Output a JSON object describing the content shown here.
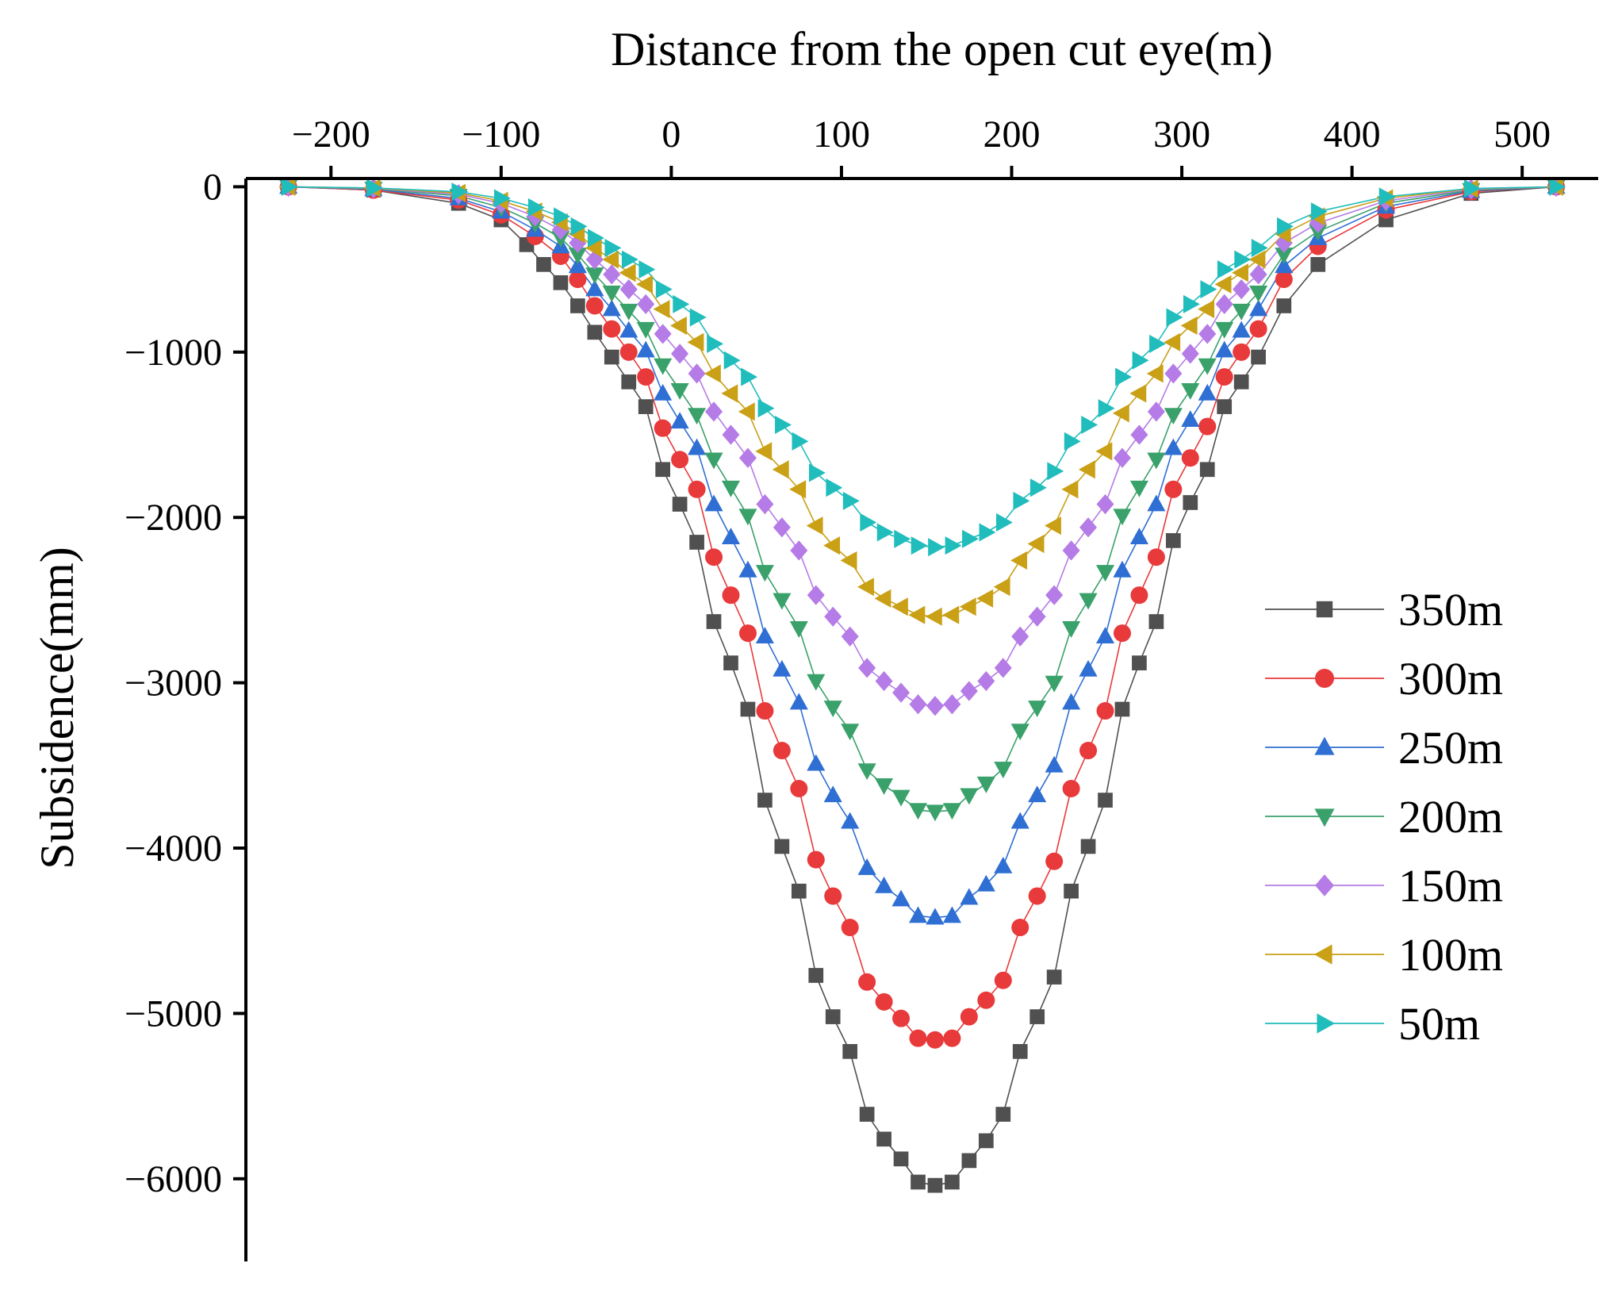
{
  "chart_data": {
    "type": "scatter",
    "title": "",
    "xlabel": "Distance from the open cut eye(m)",
    "ylabel": "Subsidence(mm)",
    "xlim": [
      -250,
      540
    ],
    "ylim": [
      -6500,
      50
    ],
    "x_ticks": [
      -200,
      -100,
      0,
      100,
      200,
      300,
      400,
      500
    ],
    "x_tick_labels": [
      "−200",
      "−100",
      "0",
      "100",
      "200",
      "300",
      "400",
      "500"
    ],
    "y_ticks": [
      0,
      -1000,
      -2000,
      -3000,
      -4000,
      -5000,
      -6000
    ],
    "y_tick_labels": [
      "0",
      "−1000",
      "−2000",
      "−3000",
      "−4000",
      "−5000",
      "−6000"
    ],
    "x_axis_position": "top",
    "legend_position": "right",
    "grid": false,
    "series": [
      {
        "name": "350m",
        "marker": "square",
        "color": "#505050",
        "line_color": "#505050",
        "x": [
          -225,
          -175,
          -125,
          -100,
          -85,
          -75,
          -65,
          -55,
          -45,
          -35,
          -25,
          -15,
          -5,
          5,
          15,
          25,
          35,
          45,
          55,
          65,
          75,
          85,
          95,
          105,
          115,
          125,
          135,
          145,
          155,
          165,
          175,
          185,
          195,
          205,
          215,
          225,
          235,
          245,
          255,
          265,
          275,
          285,
          295,
          305,
          315,
          325,
          335,
          345,
          360,
          380,
          420,
          470,
          520
        ],
        "y": [
          0,
          -20,
          -100,
          -200,
          -350,
          -470,
          -580,
          -720,
          -880,
          -1030,
          -1180,
          -1330,
          -1710,
          -1920,
          -2150,
          -2630,
          -2880,
          -3160,
          -3710,
          -3990,
          -4260,
          -4770,
          -5020,
          -5230,
          -5610,
          -5760,
          -5880,
          -6020,
          -6040,
          -6020,
          -5890,
          -5770,
          -5610,
          -5230,
          -5020,
          -4780,
          -4260,
          -3990,
          -3710,
          -3160,
          -2880,
          -2630,
          -2140,
          -1910,
          -1710,
          -1330,
          -1180,
          -1030,
          -720,
          -470,
          -200,
          -40,
          0
        ]
      },
      {
        "name": "300m",
        "marker": "circle",
        "color": "#e8393b",
        "line_color": "#e8393b",
        "x": [
          -225,
          -175,
          -125,
          -100,
          -80,
          -65,
          -55,
          -45,
          -35,
          -25,
          -15,
          -5,
          5,
          15,
          25,
          35,
          45,
          55,
          65,
          75,
          85,
          95,
          105,
          115,
          125,
          135,
          145,
          155,
          165,
          175,
          185,
          195,
          205,
          215,
          225,
          235,
          245,
          255,
          265,
          275,
          285,
          295,
          305,
          315,
          325,
          335,
          345,
          360,
          380,
          420,
          470,
          520
        ],
        "y": [
          0,
          -20,
          -80,
          -170,
          -300,
          -420,
          -560,
          -720,
          -860,
          -1000,
          -1150,
          -1460,
          -1650,
          -1830,
          -2240,
          -2470,
          -2700,
          -3170,
          -3410,
          -3640,
          -4070,
          -4290,
          -4480,
          -4810,
          -4930,
          -5030,
          -5150,
          -5160,
          -5150,
          -5020,
          -4920,
          -4800,
          -4480,
          -4290,
          -4080,
          -3640,
          -3410,
          -3170,
          -2700,
          -2470,
          -2240,
          -1830,
          -1640,
          -1450,
          -1150,
          -1000,
          -860,
          -560,
          -360,
          -140,
          -30,
          0
        ]
      },
      {
        "name": "250m",
        "marker": "triangle-up",
        "color": "#2f6fd3",
        "line_color": "#2f6fd3",
        "x": [
          -225,
          -175,
          -125,
          -100,
          -80,
          -65,
          -55,
          -45,
          -35,
          -25,
          -15,
          -5,
          5,
          15,
          25,
          35,
          45,
          55,
          65,
          75,
          85,
          95,
          105,
          115,
          125,
          135,
          145,
          155,
          165,
          175,
          185,
          195,
          205,
          215,
          225,
          235,
          245,
          255,
          265,
          275,
          285,
          295,
          305,
          315,
          325,
          335,
          345,
          360,
          380,
          420,
          470,
          520
        ],
        "y": [
          0,
          -15,
          -70,
          -150,
          -260,
          -360,
          -480,
          -620,
          -740,
          -870,
          -990,
          -1250,
          -1420,
          -1580,
          -1920,
          -2120,
          -2320,
          -2720,
          -2920,
          -3120,
          -3490,
          -3680,
          -3840,
          -4120,
          -4230,
          -4310,
          -4410,
          -4420,
          -4410,
          -4300,
          -4220,
          -4110,
          -3840,
          -3680,
          -3500,
          -3120,
          -2920,
          -2720,
          -2320,
          -2120,
          -1920,
          -1580,
          -1410,
          -1250,
          -990,
          -870,
          -740,
          -480,
          -310,
          -120,
          -25,
          0
        ]
      },
      {
        "name": "200m",
        "marker": "triangle-down",
        "color": "#3aa16b",
        "line_color": "#3aa16b",
        "x": [
          -225,
          -175,
          -125,
          -100,
          -80,
          -65,
          -55,
          -45,
          -35,
          -25,
          -15,
          -5,
          5,
          15,
          25,
          35,
          45,
          55,
          65,
          75,
          85,
          95,
          105,
          115,
          125,
          135,
          145,
          155,
          165,
          175,
          185,
          195,
          205,
          215,
          225,
          235,
          245,
          255,
          265,
          275,
          285,
          295,
          305,
          315,
          325,
          335,
          345,
          360,
          380,
          420,
          470,
          520
        ],
        "y": [
          0,
          -12,
          -55,
          -125,
          -220,
          -310,
          -410,
          -530,
          -640,
          -750,
          -860,
          -1080,
          -1230,
          -1380,
          -1650,
          -1820,
          -1990,
          -2330,
          -2500,
          -2670,
          -2990,
          -3150,
          -3290,
          -3530,
          -3620,
          -3690,
          -3770,
          -3780,
          -3770,
          -3680,
          -3610,
          -3520,
          -3290,
          -3150,
          -3000,
          -2670,
          -2500,
          -2330,
          -1990,
          -1820,
          -1650,
          -1380,
          -1230,
          -1080,
          -860,
          -750,
          -640,
          -410,
          -270,
          -100,
          -20,
          0
        ]
      },
      {
        "name": "150m",
        "marker": "diamond",
        "color": "#b57be6",
        "line_color": "#b57be6",
        "x": [
          -225,
          -175,
          -125,
          -100,
          -80,
          -65,
          -55,
          -45,
          -35,
          -25,
          -15,
          -5,
          5,
          15,
          25,
          35,
          45,
          55,
          65,
          75,
          85,
          95,
          105,
          115,
          125,
          135,
          145,
          155,
          165,
          175,
          185,
          195,
          205,
          215,
          225,
          235,
          245,
          255,
          265,
          275,
          285,
          295,
          305,
          315,
          325,
          335,
          345,
          360,
          380,
          420,
          470,
          520
        ],
        "y": [
          0,
          -10,
          -45,
          -100,
          -180,
          -260,
          -340,
          -440,
          -530,
          -620,
          -710,
          -890,
          -1010,
          -1130,
          -1360,
          -1500,
          -1640,
          -1920,
          -2060,
          -2200,
          -2470,
          -2600,
          -2720,
          -2910,
          -2990,
          -3060,
          -3130,
          -3140,
          -3130,
          -3050,
          -2990,
          -2910,
          -2720,
          -2600,
          -2470,
          -2200,
          -2060,
          -1920,
          -1640,
          -1500,
          -1360,
          -1130,
          -1010,
          -890,
          -710,
          -620,
          -530,
          -340,
          -220,
          -85,
          -15,
          0
        ]
      },
      {
        "name": "100m",
        "marker": "triangle-left",
        "color": "#c9a016",
        "line_color": "#c9a016",
        "x": [
          -225,
          -175,
          -125,
          -100,
          -80,
          -65,
          -55,
          -45,
          -35,
          -25,
          -15,
          -5,
          5,
          15,
          25,
          35,
          45,
          55,
          65,
          75,
          85,
          95,
          105,
          115,
          125,
          135,
          145,
          155,
          165,
          175,
          185,
          195,
          205,
          215,
          225,
          235,
          245,
          255,
          265,
          275,
          285,
          295,
          305,
          315,
          325,
          335,
          345,
          360,
          380,
          420,
          470,
          520
        ],
        "y": [
          0,
          -8,
          -38,
          -85,
          -150,
          -215,
          -285,
          -370,
          -440,
          -520,
          -590,
          -740,
          -840,
          -940,
          -1130,
          -1250,
          -1360,
          -1600,
          -1710,
          -1830,
          -2050,
          -2170,
          -2260,
          -2420,
          -2490,
          -2540,
          -2590,
          -2600,
          -2590,
          -2540,
          -2490,
          -2420,
          -2260,
          -2160,
          -2050,
          -1830,
          -1710,
          -1600,
          -1370,
          -1250,
          -1130,
          -940,
          -840,
          -740,
          -590,
          -520,
          -440,
          -285,
          -180,
          -70,
          -12,
          0
        ]
      },
      {
        "name": "50m",
        "marker": "triangle-right",
        "color": "#21bcbc",
        "line_color": "#21bcbc",
        "x": [
          -225,
          -175,
          -125,
          -100,
          -80,
          -65,
          -55,
          -45,
          -35,
          -25,
          -15,
          -5,
          5,
          15,
          25,
          35,
          45,
          55,
          65,
          75,
          85,
          95,
          105,
          115,
          125,
          135,
          145,
          155,
          165,
          175,
          185,
          195,
          205,
          215,
          225,
          235,
          245,
          255,
          265,
          275,
          285,
          295,
          305,
          315,
          325,
          335,
          345,
          360,
          380,
          420,
          470,
          520
        ],
        "y": [
          0,
          -7,
          -30,
          -70,
          -125,
          -180,
          -240,
          -310,
          -370,
          -440,
          -500,
          -620,
          -710,
          -790,
          -950,
          -1050,
          -1150,
          -1340,
          -1440,
          -1540,
          -1730,
          -1820,
          -1900,
          -2030,
          -2090,
          -2130,
          -2170,
          -2180,
          -2170,
          -2130,
          -2090,
          -2030,
          -1900,
          -1820,
          -1720,
          -1540,
          -1440,
          -1340,
          -1150,
          -1050,
          -950,
          -790,
          -710,
          -620,
          -500,
          -440,
          -370,
          -240,
          -150,
          -60,
          -10,
          0
        ]
      }
    ]
  }
}
